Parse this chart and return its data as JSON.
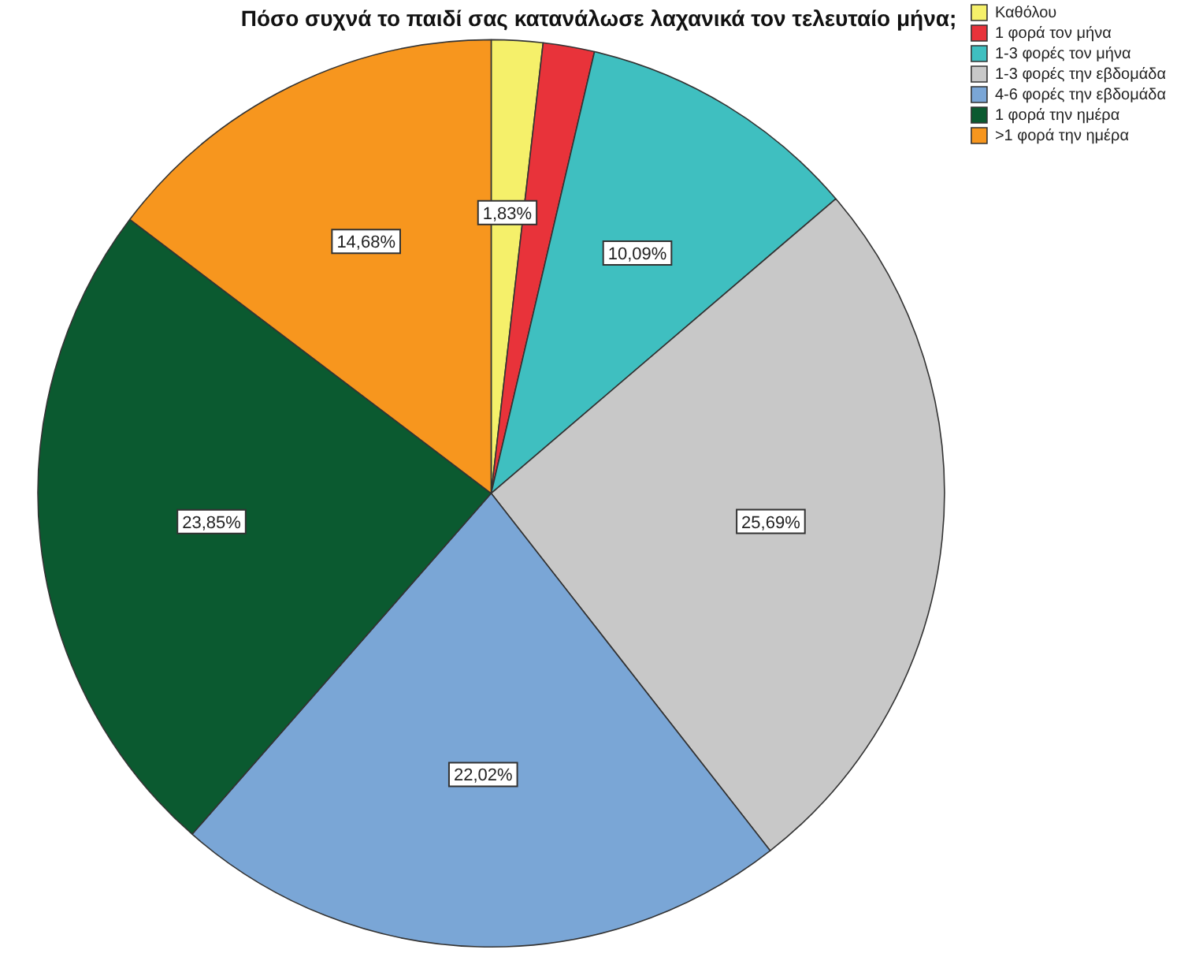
{
  "chart_data": {
    "type": "pie",
    "title": "Πόσο συχνά το παιδί σας κατανάλωσε λαχανικά τον τελευταίο μήνα;",
    "categories": [
      "Καθόλου",
      "1 φορά τον μήνα",
      "1-3 φορές τον μήνα",
      "1-3 φορές την εβδομάδα",
      "4-6 φορές την εβδομάδα",
      "1 φορά την ημέρα",
      ">1 φορά την ημέρα"
    ],
    "values": [
      1.83,
      1.83,
      10.09,
      25.69,
      22.02,
      23.85,
      14.68
    ],
    "colors": [
      "#f5f06a",
      "#e8333a",
      "#3fbfc0",
      "#c8c8c8",
      "#7aa6d6",
      "#0b5a30",
      "#f7961e"
    ],
    "value_labels": [
      "1,83%",
      null,
      "10,09%",
      "25,69%",
      "22,02%",
      "23,85%",
      "14,68%"
    ],
    "legend": "top right"
  }
}
